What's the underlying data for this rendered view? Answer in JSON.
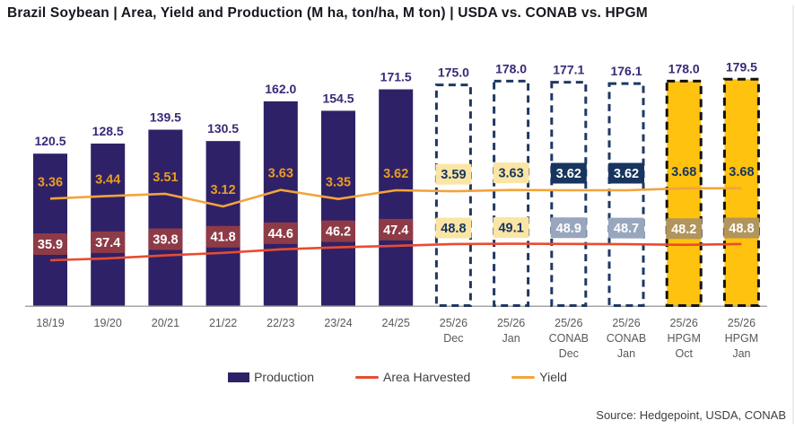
{
  "title": "Brazil Soybean | Area, Yield and Production (M ha, ton/ha, M ton) | USDA vs. CONAB vs. HPGM",
  "source": "Source: Hedgepoint, USDA, CONAB",
  "legend": {
    "items": [
      {
        "label": "Production",
        "swatch": "bar"
      },
      {
        "label": "Area Harvested",
        "swatch": "line-red"
      },
      {
        "label": "Yield",
        "swatch": "line-orange"
      }
    ]
  },
  "colors": {
    "bar_production": "#2f2167",
    "bar_hpgm": "#ffc20e",
    "dashed_navy": "#1f3864",
    "dashed_black": "#121212",
    "yield_line": "#f2a43b",
    "area_line": "#e84c30",
    "production_label": "#3a2878",
    "yield_text_hist": "#e89d25",
    "navy": "#17355e",
    "box_light_yellow": "#fbe5a4",
    "box_maroon": "#8e3b47",
    "box_grayblue": "#98a6be",
    "box_tan": "#b2955c",
    "axis_line": "#a6a6a6",
    "tick_text": "#595959",
    "white": "#ffffff"
  },
  "chart_data": {
    "type": "bar",
    "title": "Brazil Soybean | Area, Yield and Production (M ha, ton/ha, M ton) | USDA vs. CONAB vs. HPGM",
    "categories": [
      [
        "18/19"
      ],
      [
        "19/20"
      ],
      [
        "20/21"
      ],
      [
        "21/22"
      ],
      [
        "22/23"
      ],
      [
        "23/24"
      ],
      [
        "24/25"
      ],
      [
        "25/26",
        "Dec"
      ],
      [
        "25/26",
        "Jan"
      ],
      [
        "25/26",
        "CONAB",
        "Dec"
      ],
      [
        "25/26",
        "CONAB",
        "Jan"
      ],
      [
        "25/26",
        "HPGM",
        "Oct"
      ],
      [
        "25/26",
        "HPGM",
        "Jan"
      ]
    ],
    "bar_groups": [
      "hist",
      "hist",
      "hist",
      "hist",
      "hist",
      "hist",
      "hist",
      "usda",
      "usda",
      "conab",
      "conab",
      "hpgm",
      "hpgm"
    ],
    "series": [
      {
        "name": "Production",
        "unit": "M ton",
        "values": [
          120.5,
          128.5,
          139.5,
          130.5,
          162.0,
          154.5,
          171.5,
          175.0,
          178.0,
          177.1,
          176.1,
          178.0,
          179.5
        ]
      },
      {
        "name": "Area Harvested",
        "unit": "M ha",
        "values": [
          35.9,
          37.4,
          39.8,
          41.8,
          44.6,
          46.2,
          47.4,
          48.8,
          49.1,
          48.9,
          48.7,
          48.2,
          48.8
        ]
      },
      {
        "name": "Yield",
        "unit": "ton/ha",
        "values": [
          3.36,
          3.44,
          3.51,
          3.12,
          3.63,
          3.35,
          3.62,
          3.59,
          3.63,
          3.62,
          3.62,
          3.68,
          3.68
        ]
      }
    ],
    "ylim": [
      0,
      185
    ],
    "grid": false,
    "legend_position": "bottom"
  }
}
